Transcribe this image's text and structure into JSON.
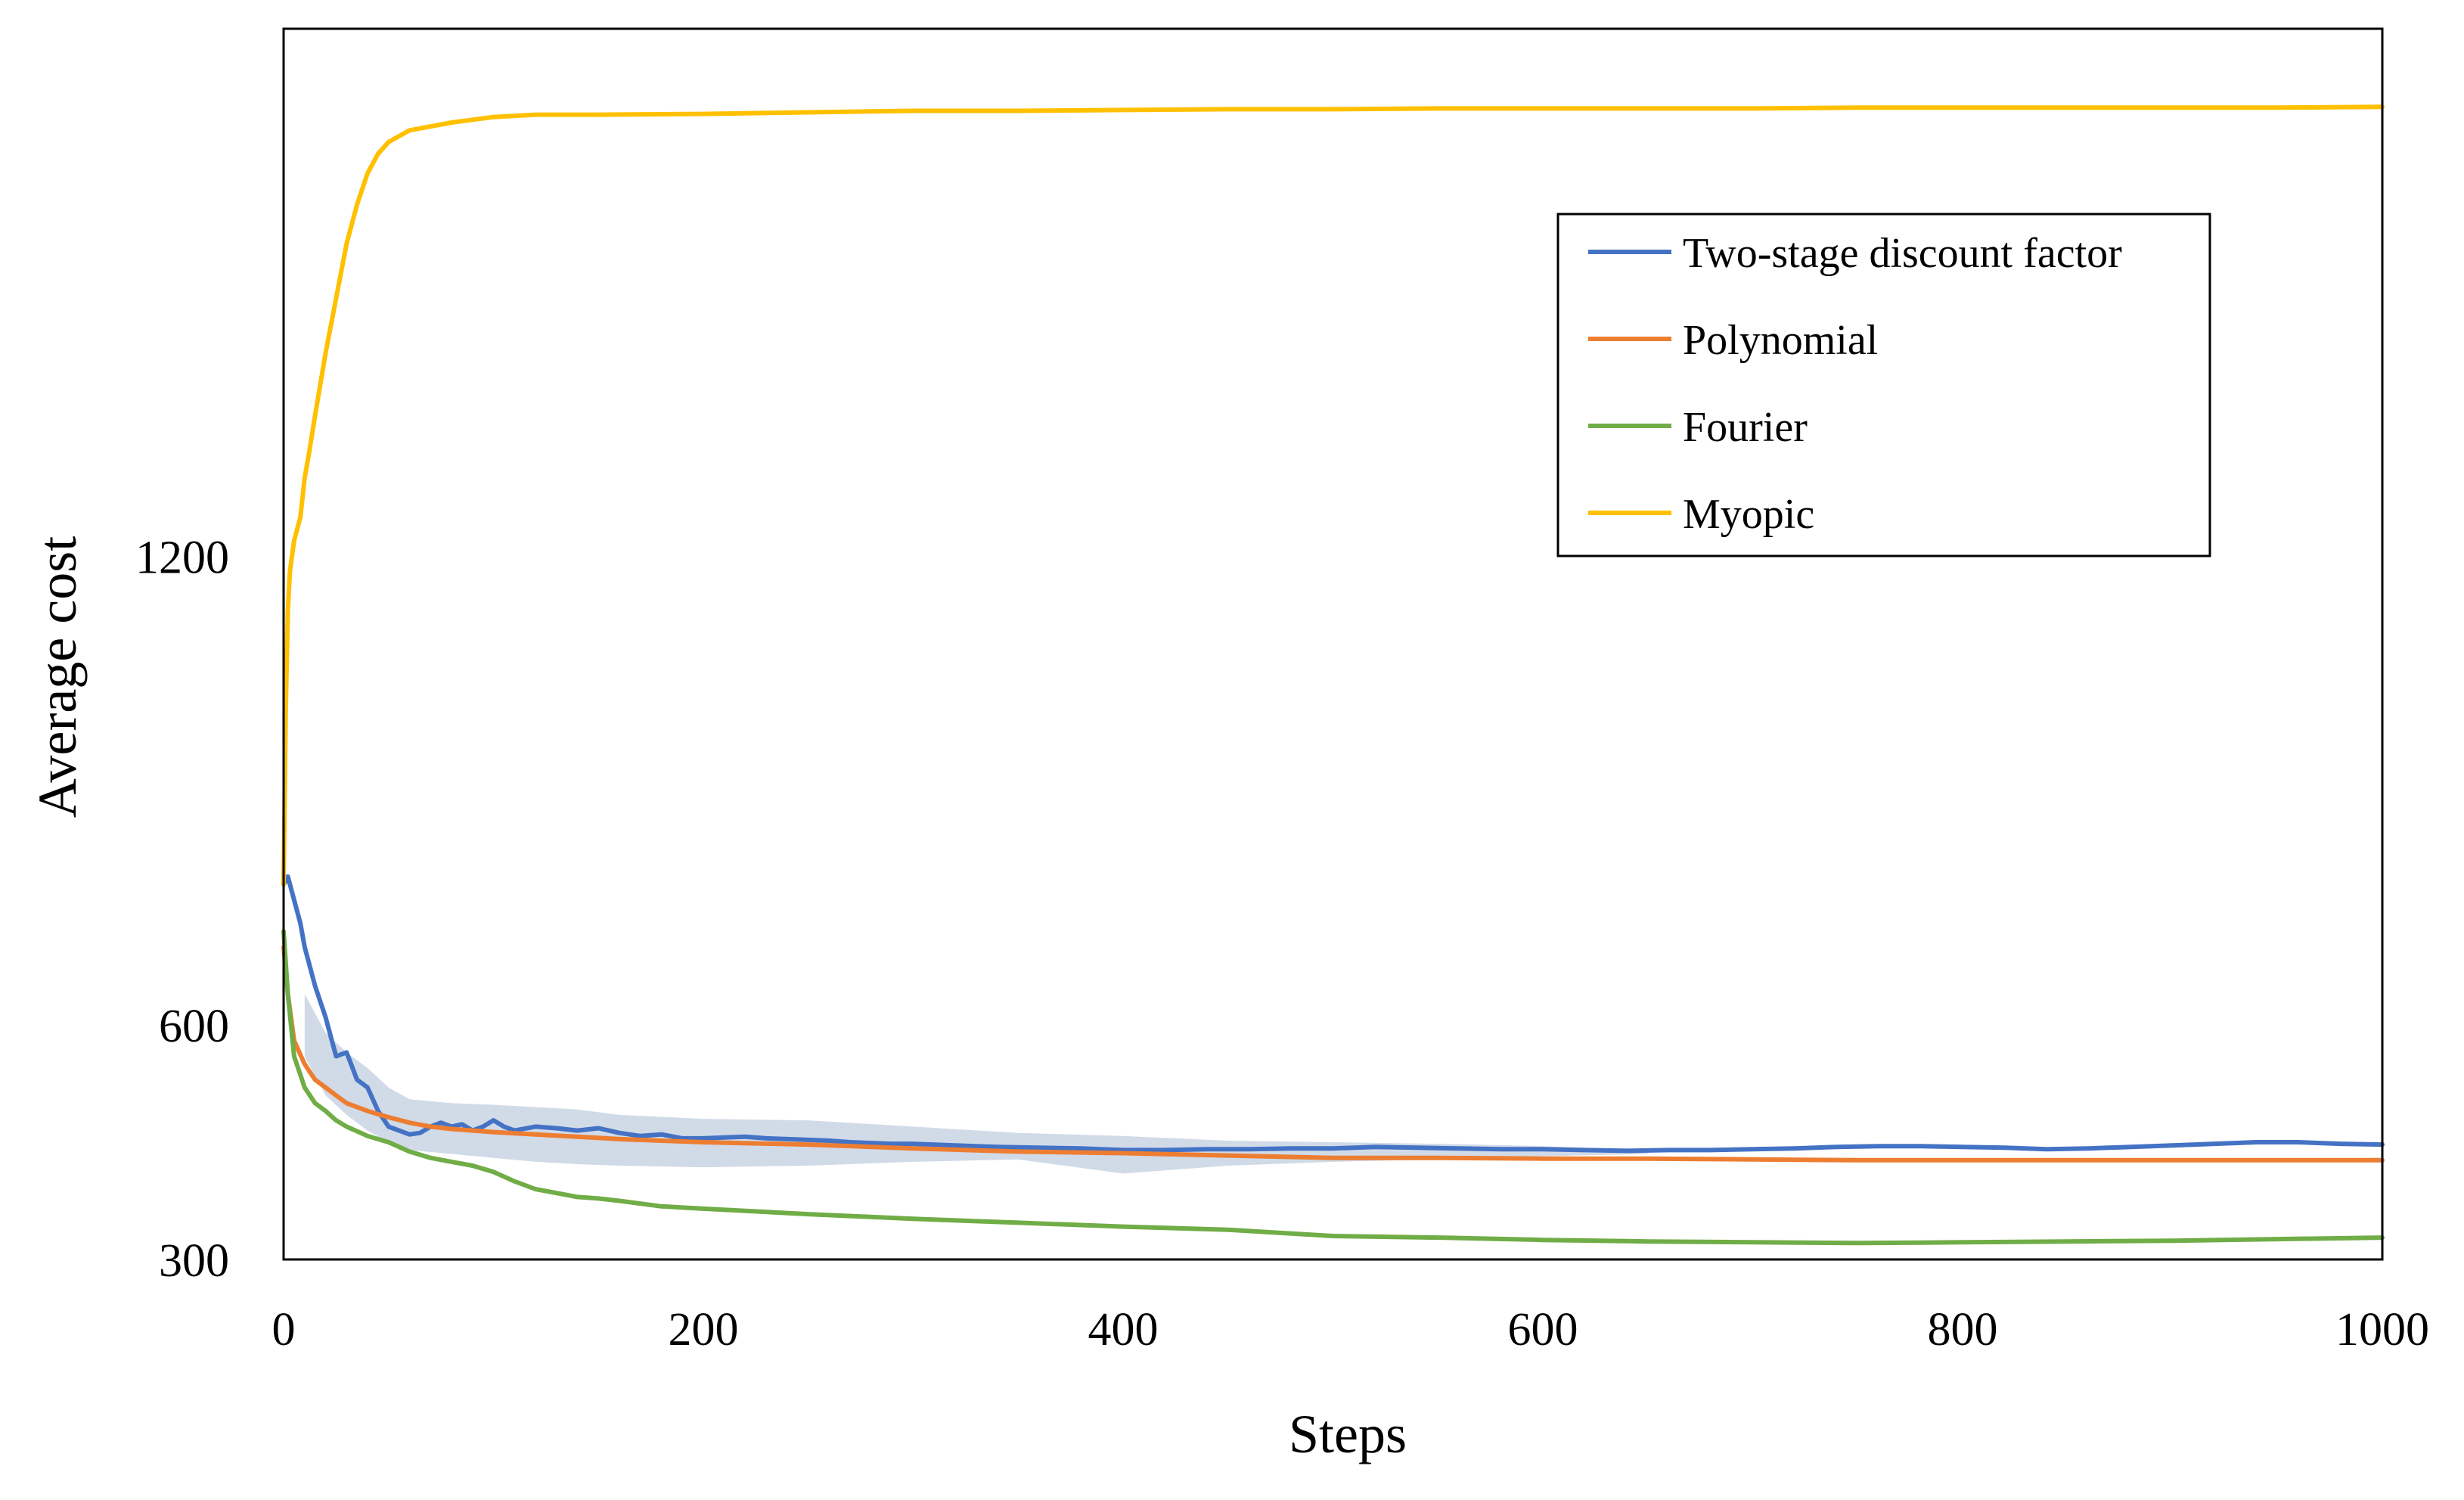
{
  "chart_data": {
    "type": "line",
    "title": "",
    "xlabel": "Steps",
    "ylabel": "Average cost",
    "xlim": [
      0,
      1000
    ],
    "ylim": [
      300,
      1875
    ],
    "xticks": [
      0,
      200,
      400,
      600,
      800,
      1000
    ],
    "yticks": [
      300,
      600,
      1200
    ],
    "grid": false,
    "legend_position": "top-right",
    "band": {
      "series": "Two-stage discount factor",
      "color": "#c9d3e3",
      "x": [
        10,
        20,
        30,
        40,
        50,
        60,
        80,
        100,
        120,
        140,
        160,
        200,
        250,
        300,
        350,
        400,
        450,
        500,
        550,
        600,
        650
      ],
      "lower": [
        560,
        510,
        485,
        465,
        450,
        440,
        435,
        430,
        425,
        422,
        420,
        418,
        420,
        425,
        428,
        410,
        420,
        425,
        428,
        432,
        435
      ],
      "upper": [
        640,
        590,
        565,
        545,
        520,
        505,
        500,
        498,
        495,
        492,
        485,
        480,
        478,
        470,
        462,
        458,
        452,
        450,
        448,
        445,
        440
      ]
    },
    "series": [
      {
        "name": "Two-stage discount factor",
        "color": "#4472c4",
        "x": [
          0,
          2,
          5,
          8,
          10,
          15,
          20,
          25,
          30,
          35,
          40,
          45,
          50,
          55,
          60,
          65,
          70,
          75,
          80,
          85,
          90,
          95,
          100,
          105,
          110,
          120,
          130,
          140,
          150,
          160,
          170,
          180,
          190,
          200,
          210,
          220,
          230,
          240,
          250,
          260,
          270,
          280,
          290,
          300,
          320,
          340,
          360,
          380,
          400,
          420,
          440,
          460,
          480,
          500,
          520,
          540,
          560,
          580,
          600,
          620,
          640,
          660,
          680,
          700,
          720,
          740,
          760,
          780,
          800,
          820,
          840,
          860,
          880,
          900,
          920,
          940,
          960,
          980,
          1000
        ],
        "values": [
          780,
          790,
          760,
          730,
          700,
          650,
          610,
          560,
          565,
          530,
          520,
          490,
          470,
          465,
          460,
          462,
          470,
          475,
          470,
          473,
          465,
          470,
          478,
          470,
          465,
          470,
          468,
          465,
          468,
          462,
          458,
          460,
          455,
          455,
          456,
          457,
          455,
          454,
          453,
          452,
          450,
          449,
          448,
          448,
          446,
          444,
          443,
          442,
          440,
          440,
          441,
          441,
          442,
          442,
          444,
          443,
          442,
          441,
          441,
          440,
          439,
          440,
          440,
          441,
          442,
          444,
          445,
          445,
          444,
          443,
          441,
          442,
          444,
          446,
          448,
          450,
          450,
          448,
          447
        ]
      },
      {
        "name": "Polynomial",
        "color": "#ed7d31",
        "x": [
          0,
          2,
          5,
          10,
          15,
          20,
          25,
          30,
          40,
          50,
          60,
          70,
          80,
          100,
          120,
          140,
          160,
          180,
          200,
          250,
          300,
          350,
          400,
          450,
          500,
          550,
          600,
          650,
          700,
          750,
          800,
          850,
          900,
          950,
          1000
        ],
        "values": [
          700,
          640,
          580,
          550,
          530,
          520,
          510,
          500,
          490,
          482,
          475,
          470,
          467,
          463,
          460,
          457,
          454,
          452,
          450,
          447,
          442,
          438,
          436,
          433,
          430,
          430,
          429,
          429,
          428,
          427,
          427,
          427,
          427,
          427,
          427
        ]
      },
      {
        "name": "Fourier",
        "color": "#70ad47",
        "x": [
          0,
          2,
          5,
          10,
          15,
          20,
          25,
          30,
          40,
          50,
          60,
          70,
          80,
          90,
          100,
          110,
          120,
          130,
          140,
          150,
          160,
          180,
          200,
          250,
          300,
          350,
          400,
          450,
          500,
          550,
          600,
          650,
          700,
          750,
          800,
          850,
          900,
          950,
          1000
        ],
        "values": [
          720,
          640,
          560,
          520,
          500,
          490,
          478,
          470,
          458,
          450,
          438,
          430,
          425,
          420,
          412,
          400,
          390,
          385,
          380,
          378,
          375,
          368,
          365,
          358,
          352,
          347,
          342,
          338,
          330,
          328,
          325,
          323,
          322,
          321,
          322,
          323,
          324,
          326,
          328
        ]
      },
      {
        "name": "Myopic",
        "color": "#ffc000",
        "x": [
          0,
          1,
          2,
          3,
          5,
          8,
          10,
          12,
          15,
          20,
          25,
          30,
          35,
          40,
          45,
          50,
          60,
          80,
          100,
          120,
          150,
          200,
          250,
          300,
          350,
          400,
          450,
          500,
          550,
          600,
          650,
          700,
          750,
          800,
          850,
          900,
          950,
          1000
        ],
        "values": [
          780,
          1000,
          1130,
          1180,
          1220,
          1250,
          1300,
          1330,
          1380,
          1460,
          1530,
          1600,
          1650,
          1690,
          1715,
          1730,
          1745,
          1755,
          1762,
          1765,
          1765,
          1766,
          1768,
          1770,
          1770,
          1771,
          1772,
          1772,
          1773,
          1773,
          1773,
          1773,
          1774,
          1774,
          1774,
          1774,
          1774,
          1775
        ]
      }
    ]
  }
}
